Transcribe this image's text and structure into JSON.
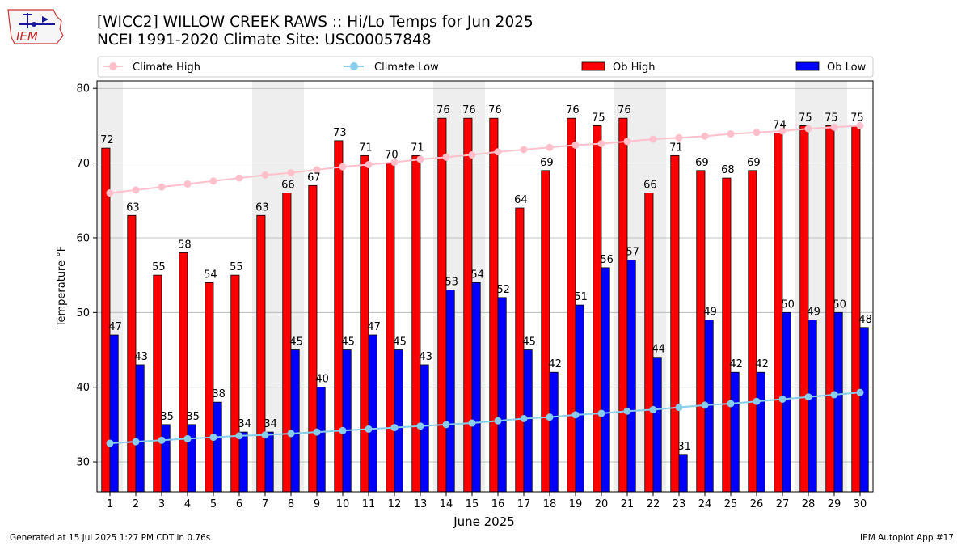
{
  "logo": {
    "text": "IEM"
  },
  "footer": {
    "generated": "Generated at 15 Jul 2025 1:27 PM CDT in 0.76s",
    "app": "IEM Autoplot App #17"
  },
  "colors": {
    "ob_high": "#ff0000",
    "ob_low": "#0000ff",
    "climate_high": "#ffc0cb",
    "climate_low": "#87ceeb",
    "weekend_band": "#eeeeee",
    "grid": "#b0b0b0"
  },
  "chart_data": {
    "type": "bar",
    "title": "[WICC2] WILLOW CREEK RAWS :: Hi/Lo Temps for Jun 2025",
    "subtitle": "NCEI 1991-2020 Climate Site: USC00057848",
    "xlabel": "June 2025",
    "ylabel": "Temperature °F",
    "ylim": [
      26,
      81
    ],
    "yticks": [
      30,
      40,
      50,
      60,
      70,
      80
    ],
    "legend_position": "top",
    "legend": [
      "Climate High",
      "Climate Low",
      "Ob High",
      "Ob Low"
    ],
    "categories": [
      "1",
      "2",
      "3",
      "4",
      "5",
      "6",
      "7",
      "8",
      "9",
      "10",
      "11",
      "12",
      "13",
      "14",
      "15",
      "16",
      "17",
      "18",
      "19",
      "20",
      "21",
      "22",
      "23",
      "24",
      "25",
      "26",
      "27",
      "28",
      "29",
      "30"
    ],
    "weekend_days": [
      1,
      7,
      8,
      14,
      15,
      21,
      22,
      28,
      29
    ],
    "series": [
      {
        "name": "Ob High",
        "kind": "bar",
        "values": [
          72,
          63,
          55,
          58,
          54,
          55,
          63,
          66,
          67,
          73,
          71,
          70,
          71,
          76,
          76,
          76,
          64,
          69,
          76,
          75,
          76,
          66,
          71,
          69,
          68,
          69,
          74,
          75,
          75,
          75
        ]
      },
      {
        "name": "Ob Low",
        "kind": "bar",
        "values": [
          47,
          43,
          35,
          35,
          38,
          34,
          34,
          45,
          40,
          45,
          47,
          45,
          43,
          53,
          54,
          52,
          45,
          42,
          51,
          56,
          57,
          44,
          31,
          49,
          42,
          42,
          50,
          49,
          50,
          48
        ]
      },
      {
        "name": "Climate High",
        "kind": "line",
        "values": [
          66.0,
          66.4,
          66.8,
          67.2,
          67.6,
          68.0,
          68.4,
          68.7,
          69.1,
          69.5,
          69.8,
          70.1,
          70.5,
          70.8,
          71.1,
          71.5,
          71.8,
          72.1,
          72.4,
          72.6,
          72.9,
          73.2,
          73.4,
          73.6,
          73.9,
          74.1,
          74.3,
          74.6,
          74.8,
          75.0
        ]
      },
      {
        "name": "Climate Low",
        "kind": "line",
        "values": [
          32.5,
          32.7,
          32.9,
          33.1,
          33.3,
          33.5,
          33.6,
          33.8,
          34.0,
          34.2,
          34.4,
          34.6,
          34.8,
          35.0,
          35.2,
          35.5,
          35.8,
          36.0,
          36.3,
          36.5,
          36.8,
          37.0,
          37.3,
          37.6,
          37.8,
          38.1,
          38.4,
          38.7,
          39.0,
          39.3
        ]
      }
    ]
  }
}
